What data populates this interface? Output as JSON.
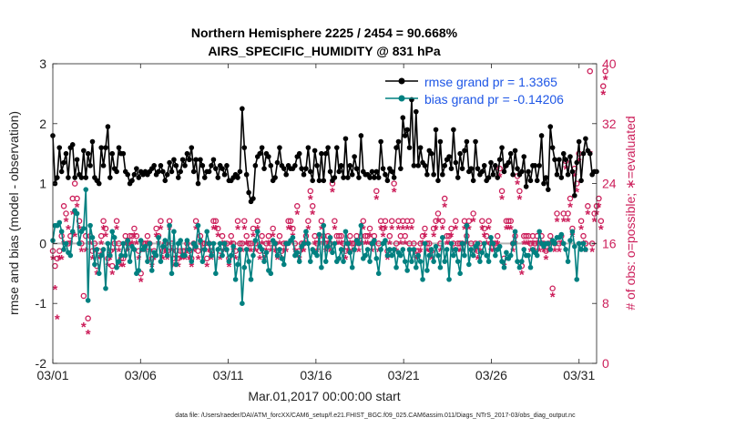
{
  "chart_data": {
    "type": "line",
    "title": "Northern Hemisphere 2225 / 2454 = 90.668%",
    "subtitle": "AIRS_SPECIFIC_HUMIDITY @ 831 hPa",
    "xlabel": "Mar.01,2017 00:00:00 start",
    "ylabel": "rmse and bias (model - observation)",
    "y2label": "# of obs: o=possible; ∗=evaluated",
    "footnote": "data file: /Users/raeder/DAI/ATM_forcXX/CAM6_setup/f.e21.FHIST_BGC.f09_025.CAM6assim.011/Diags_NTrS_2017-03/obs_diag_output.nc",
    "xlim": [
      0,
      31
    ],
    "ylim": [
      -2,
      3
    ],
    "y2lim": [
      0,
      40
    ],
    "grid": false,
    "legend_position": "top-right",
    "x_ticks": [
      {
        "value": 0,
        "label": "03/01"
      },
      {
        "value": 5,
        "label": "03/06"
      },
      {
        "value": 10,
        "label": "03/11"
      },
      {
        "value": 15,
        "label": "03/16"
      },
      {
        "value": 20,
        "label": "03/21"
      },
      {
        "value": 25,
        "label": "03/26"
      },
      {
        "value": 30,
        "label": "03/31"
      }
    ],
    "y_ticks": [
      "-2",
      "-1",
      "0",
      "1",
      "2",
      "3"
    ],
    "y2_ticks": [
      "0",
      "8",
      "16",
      "24",
      "32",
      "40"
    ],
    "series": [
      {
        "name": "rmse",
        "legend": "rmse grand pr = 1.3365",
        "color": "#000000",
        "marker": "filled-circle",
        "values": [
          1.8,
          1.0,
          1.1,
          1.6,
          1.2,
          1.35,
          1.5,
          1.1,
          1.6,
          1.65,
          1.1,
          1.4,
          1.15,
          1.1,
          1.55,
          1.1,
          1.5,
          1.3,
          1.7,
          1.1,
          1.05,
          1.0,
          1.6,
          1.3,
          1.6,
          1.95,
          1.1,
          1.5,
          1.25,
          1.2,
          1.6,
          1.5,
          1.5,
          1.2,
          1.15,
          1.0,
          1.05,
          1.15,
          1.25,
          1.1,
          1.2,
          1.15,
          1.2,
          1.15,
          1.2,
          1.25,
          1.3,
          1.15,
          1.2,
          1.3,
          1.2,
          1.05,
          1.15,
          1.35,
          1.2,
          1.4,
          1.3,
          1.1,
          1.2,
          1.4,
          1.3,
          1.5,
          1.4,
          1.6,
          1.2,
          1.4,
          1.0,
          1.4,
          1.3,
          1.1,
          1.2,
          1.2,
          1.3,
          1.4,
          1.25,
          1.1,
          1.3,
          1.25,
          1.15,
          1.3,
          1.05,
          1.05,
          1.1,
          1.15,
          1.1,
          1.2,
          2.25,
          1.6,
          1.15,
          0.85,
          0.7,
          0.75,
          1.3,
          1.45,
          1.5,
          1.6,
          1.25,
          1.5,
          1.45,
          1.3,
          1.05,
          1.1,
          1.35,
          1.6,
          1.3,
          1.25,
          1.15,
          1.3,
          1.25,
          1.25,
          1.3,
          1.45,
          1.5,
          1.25,
          1.15,
          1.25,
          1.6,
          1.2,
          1.05,
          1.55,
          1.3,
          1.05,
          1.5,
          1.05,
          1.5,
          1.6,
          1.2,
          1.05,
          1.1,
          1.6,
          1.2,
          1.3,
          1.1,
          1.75,
          1.1,
          1.3,
          1.15,
          1.45,
          1.25,
          1.1,
          1.8,
          1.2,
          1.15,
          1.15,
          1.1,
          1.2,
          1.1,
          1.2,
          1.1,
          1.7,
          1.25,
          1.15,
          1.05,
          1.25,
          1.2,
          1.1,
          1.6,
          1.7,
          1.25,
          2.1,
          1.8,
          1.9,
          1.6,
          2.4,
          1.3,
          2.2,
          1.3,
          1.6,
          1.35,
          1.3,
          1.15,
          1.55,
          1.5,
          1.15,
          1.9,
          1.05,
          1.7,
          1.15,
          1.3,
          1.4,
          1.45,
          1.25,
          1.9,
          1.35,
          1.1,
          1.5,
          1.25,
          1.55,
          1.7,
          1.2,
          1.25,
          1.05,
          1.7,
          1.25,
          1.15,
          1.2,
          1.3,
          1.05,
          1.1,
          1.35,
          1.15,
          1.3,
          1.1,
          1.4,
          1.6,
          1.2,
          1.3,
          1.35,
          1.5,
          1.15,
          1.55,
          1.25,
          1.15,
          1.2,
          1.45,
          0.95,
          1.2,
          1.05,
          1.3,
          1.3,
          1.05,
          1.3,
          1.8,
          1.0,
          1.1,
          0.9,
          1.95,
          1.6,
          1.4,
          1.15,
          1.4,
          1.1,
          1.5,
          1.4,
          1.15,
          1.45,
          1.2,
          0.8,
          1.35,
          1.7,
          1.05,
          1.5,
          1.75,
          1.55,
          1.5,
          1.15,
          1.2,
          1.2
        ]
      },
      {
        "name": "bias",
        "legend": "bias grand pr = -0.14206",
        "color": "#008080",
        "marker": "filled-circle",
        "values": [
          0.05,
          0.3,
          0.3,
          0.35,
          0.2,
          -0.1,
          0.0,
          -0.15,
          -0.2,
          0.2,
          0.55,
          0.5,
          0.0,
          0.2,
          0.25,
          0.9,
          -0.95,
          0.3,
          0.1,
          -0.35,
          -0.1,
          -0.5,
          -0.2,
          -0.1,
          -0.75,
          0.0,
          -0.2,
          0.2,
          0.1,
          -0.4,
          -0.3,
          -0.2,
          0.0,
          -0.2,
          0.05,
          -0.3,
          -0.05,
          -0.1,
          -0.5,
          -0.45,
          0.05,
          -0.1,
          -0.05,
          -0.3,
          0.0,
          -0.45,
          -0.15,
          -0.2,
          0.1,
          -0.3,
          -0.05,
          0.05,
          -0.2,
          0.3,
          -0.5,
          0.2,
          -0.35,
          0.0,
          0.05,
          -0.2,
          -0.2,
          0.05,
          -0.1,
          -0.3,
          0.0,
          -0.05,
          0.3,
          0.05,
          -0.3,
          -0.1,
          0.2,
          0.0,
          -0.2,
          0.0,
          -0.5,
          -0.1,
          0.0,
          -0.2,
          0.0,
          -0.1,
          -0.3,
          -0.2,
          -0.05,
          -0.6,
          -0.35,
          -0.1,
          -1.0,
          -0.4,
          -0.1,
          -0.3,
          -0.6,
          -0.2,
          0.05,
          0.2,
          -0.05,
          -0.1,
          -0.3,
          -0.15,
          -0.45,
          -0.5,
          0.05,
          0.0,
          -0.2,
          -0.1,
          -0.25,
          -0.35,
          0.0,
          0.0,
          0.05,
          0.1,
          -0.2,
          -0.15,
          -0.3,
          -0.05,
          0.0,
          0.2,
          0.0,
          -0.3,
          -0.1,
          -0.15,
          -0.2,
          0.15,
          -0.4,
          0.3,
          -0.3,
          -0.05,
          0.1,
          -0.15,
          0.0,
          -0.3,
          -0.25,
          -0.1,
          -0.3,
          0.2,
          0.0,
          -0.15,
          -0.4,
          -0.1,
          0.05,
          0.0,
          0.3,
          -0.25,
          -0.2,
          -0.1,
          -0.3,
          0.0,
          0.05,
          -0.25,
          -0.5,
          -0.1,
          0.0,
          0.05,
          -0.2,
          -0.1,
          -0.2,
          -0.1,
          -0.4,
          -0.15,
          -0.2,
          -0.1,
          -0.3,
          -0.45,
          -0.1,
          -0.3,
          -0.1,
          -0.4,
          -0.2,
          -0.3,
          -0.6,
          0.0,
          -0.45,
          -0.2,
          -0.1,
          -0.3,
          -0.05,
          -0.2,
          -0.4,
          0.1,
          -0.3,
          -0.1,
          -0.6,
          0.0,
          -0.2,
          -0.1,
          -0.3,
          -0.5,
          0.0,
          -0.2,
          0.3,
          -0.35,
          -0.1,
          -0.2,
          -0.05,
          0.0,
          -0.3,
          -0.15,
          0.0,
          -0.2,
          -0.3,
          0.1,
          0.0,
          -0.2,
          -0.1,
          -0.05,
          -0.3,
          -0.4,
          -0.15,
          -0.25,
          -0.2,
          0.0,
          0.2,
          -0.3,
          -0.4,
          -0.3,
          -0.1,
          -0.2,
          -0.2,
          -0.4,
          -0.1,
          -0.15,
          -0.2,
          0.2,
          0.0,
          -0.05,
          0.0,
          0.0,
          -0.1,
          0.05,
          0.0,
          0.1,
          0.1,
          0.15,
          0.0,
          -0.1,
          -0.3,
          0.05,
          0.2,
          -0.05,
          -0.6,
          0.0,
          -0.1,
          0.0,
          -0.1
        ]
      }
    ],
    "obs_possible": {
      "name": "# of obs possible",
      "marker": "o",
      "color": "#cc1e5a",
      "values": [
        15,
        13,
        14,
        15,
        17,
        21,
        20,
        16,
        17,
        22,
        24,
        22,
        19,
        16,
        9,
        17,
        6,
        17,
        15,
        16,
        13,
        15,
        17,
        19,
        18,
        14,
        15,
        13,
        16,
        19,
        16,
        14,
        14,
        17,
        16,
        17,
        17,
        18,
        17,
        15,
        12,
        16,
        16,
        17,
        16,
        14,
        15,
        18,
        17,
        19,
        15,
        16,
        15,
        19,
        16,
        14,
        15,
        14,
        15,
        15,
        15,
        16,
        15,
        14,
        16,
        19,
        15,
        17,
        16,
        16,
        14,
        16,
        15,
        19,
        19,
        18,
        15,
        17,
        16,
        16,
        14,
        17,
        16,
        15,
        19,
        16,
        16,
        19,
        17,
        16,
        16,
        18,
        16,
        19,
        15,
        17,
        15,
        16,
        17,
        16,
        18,
        16,
        15,
        17,
        15,
        16,
        16,
        19,
        19,
        18,
        16,
        21,
        15,
        16,
        16,
        17,
        19,
        23,
        21,
        17,
        16,
        17,
        19,
        17,
        16,
        17,
        16,
        24,
        19,
        17,
        17,
        17,
        16,
        15,
        16,
        17,
        16,
        16,
        17,
        16,
        17,
        19,
        17,
        17,
        18,
        16,
        17,
        23,
        16,
        19,
        18,
        19,
        15,
        17,
        19,
        24,
        16,
        19,
        17,
        19,
        17,
        19,
        16,
        19,
        16,
        15,
        15,
        16,
        17,
        18,
        16,
        16,
        15,
        18,
        19,
        20,
        16,
        19,
        22,
        17,
        17,
        18,
        16,
        19,
        16,
        16,
        16,
        19,
        17,
        19,
        16,
        20,
        16,
        15,
        16,
        19,
        18,
        17,
        19,
        16,
        16,
        16,
        17,
        26,
        23,
        14,
        19,
        19,
        19,
        16,
        17,
        25,
        23,
        13,
        17,
        17,
        17,
        16,
        17,
        16,
        17,
        16,
        17,
        16,
        15,
        16,
        17,
        10,
        16,
        20,
        16,
        17,
        20,
        27,
        20,
        22,
        18,
        26,
        24,
        28,
        19,
        17,
        16,
        21,
        39,
        16,
        20,
        21,
        22,
        19,
        37,
        39
      ]
    },
    "obs_evaluated": {
      "name": "# of obs evaluated",
      "marker": "*",
      "color": "#cc1e5a",
      "values": [
        14,
        10,
        6,
        14,
        14,
        16,
        19,
        18,
        16,
        20,
        17,
        21,
        18,
        15,
        5,
        15,
        4,
        16,
        14,
        15,
        12,
        14,
        16,
        18,
        17,
        13,
        14,
        12,
        15,
        18,
        15,
        13,
        13,
        16,
        15,
        16,
        16,
        17,
        16,
        14,
        11,
        15,
        15,
        16,
        15,
        13,
        14,
        17,
        16,
        18,
        14,
        15,
        14,
        18,
        15,
        13,
        14,
        13,
        14,
        14,
        14,
        15,
        14,
        13,
        15,
        18,
        14,
        16,
        15,
        15,
        13,
        15,
        14,
        18,
        18,
        17,
        14,
        16,
        15,
        15,
        13,
        16,
        15,
        14,
        18,
        15,
        15,
        18,
        16,
        15,
        15,
        17,
        15,
        18,
        14,
        16,
        14,
        15,
        16,
        15,
        17,
        15,
        14,
        16,
        14,
        15,
        15,
        18,
        18,
        17,
        15,
        20,
        14,
        15,
        15,
        16,
        18,
        22,
        20,
        16,
        15,
        16,
        18,
        16,
        15,
        16,
        15,
        23,
        18,
        16,
        16,
        16,
        15,
        14,
        15,
        16,
        15,
        15,
        16,
        15,
        16,
        18,
        16,
        16,
        17,
        15,
        16,
        22,
        15,
        18,
        17,
        18,
        14,
        16,
        18,
        23,
        15,
        18,
        16,
        18,
        16,
        18,
        15,
        18,
        15,
        14,
        14,
        15,
        16,
        17,
        15,
        15,
        14,
        17,
        18,
        19,
        15,
        18,
        21,
        16,
        16,
        17,
        15,
        18,
        15,
        15,
        15,
        18,
        16,
        18,
        15,
        19,
        15,
        14,
        15,
        18,
        17,
        16,
        18,
        15,
        15,
        15,
        16,
        25,
        22,
        13,
        18,
        18,
        18,
        15,
        16,
        24,
        22,
        12,
        16,
        16,
        16,
        15,
        16,
        15,
        16,
        15,
        16,
        15,
        14,
        15,
        16,
        9,
        15,
        19,
        15,
        16,
        19,
        26,
        19,
        21,
        17,
        25,
        23,
        27,
        18,
        16,
        15,
        20,
        28,
        15,
        19,
        20,
        21,
        18,
        36,
        38
      ]
    }
  }
}
